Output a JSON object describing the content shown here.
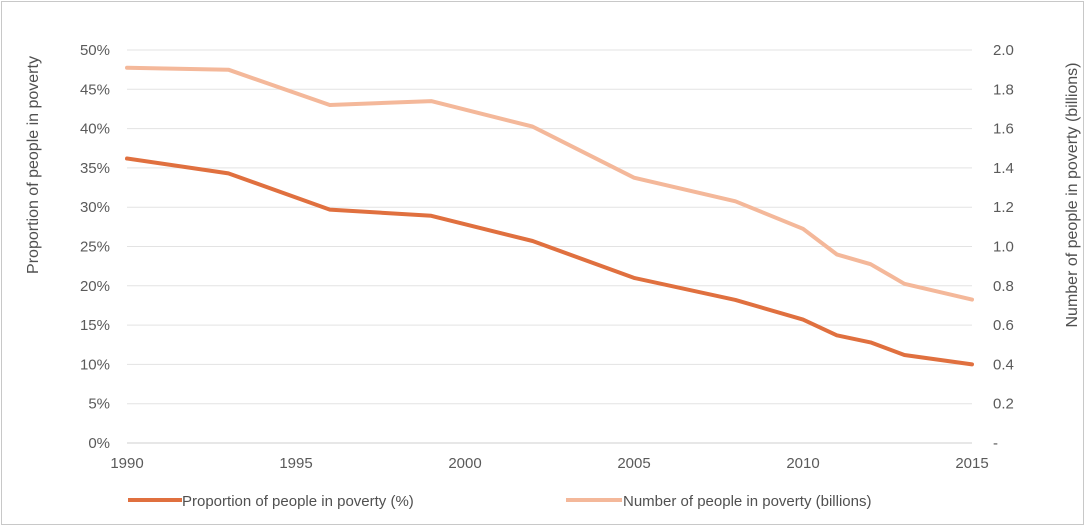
{
  "chart_data": {
    "type": "line",
    "x_ticks": [
      "1990",
      "1995",
      "2000",
      "2005",
      "2010",
      "2015"
    ],
    "xlim": [
      1990,
      2015
    ],
    "y_left": {
      "label": "Proportion of people in poverty",
      "ticks": [
        "0%",
        "5%",
        "10%",
        "15%",
        "20%",
        "25%",
        "30%",
        "35%",
        "40%",
        "45%",
        "50%"
      ],
      "ylim": [
        0,
        50
      ]
    },
    "y_right": {
      "label": "Number of people in poverty (billions)",
      "ticks": [
        "-",
        "0.2",
        "0.4",
        "0.6",
        "0.8",
        "1.0",
        "1.2",
        "1.4",
        "1.6",
        "1.8",
        "2.0"
      ],
      "ylim": [
        0,
        2.0
      ]
    },
    "grid": "horizontal",
    "legend": "bottom",
    "series": [
      {
        "name": "Proportion of people in poverty (%)",
        "axis": "left",
        "color": "#e0703f",
        "x": [
          1990,
          1993,
          1996,
          1999,
          2002,
          2005,
          2008,
          2010,
          2011,
          2012,
          2013,
          2015
        ],
        "y": [
          36.2,
          34.3,
          29.7,
          28.9,
          25.7,
          21.0,
          18.2,
          15.7,
          13.7,
          12.8,
          11.2,
          10.0
        ]
      },
      {
        "name": "Number of people in poverty (billions)",
        "axis": "right",
        "color": "#f4b89a",
        "x": [
          1990,
          1993,
          1996,
          1999,
          2002,
          2005,
          2008,
          2010,
          2011,
          2012,
          2013,
          2015
        ],
        "y": [
          1.91,
          1.9,
          1.72,
          1.74,
          1.61,
          1.35,
          1.23,
          1.09,
          0.96,
          0.91,
          0.81,
          0.73
        ]
      }
    ]
  }
}
